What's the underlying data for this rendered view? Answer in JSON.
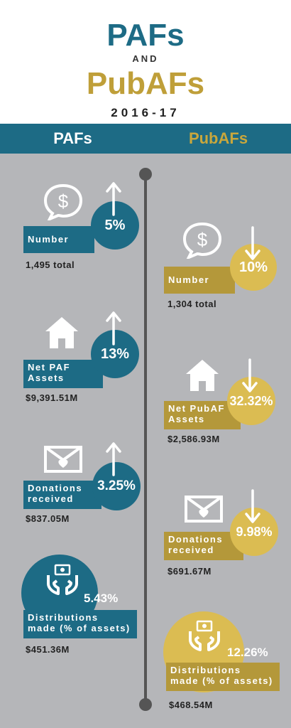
{
  "header": {
    "title_pafs": "PAFs",
    "title_and": "AND",
    "title_pubafs": "PubAFs",
    "year": "2016-17"
  },
  "banner": {
    "left": "PAFs",
    "right": "PubAFs"
  },
  "pafs": {
    "number": {
      "label": "Number",
      "percent": "5%",
      "total": "1,495 total",
      "trend": "up"
    },
    "assets": {
      "label_line1": "Net PAF",
      "label_line2": "Assets",
      "percent": "13%",
      "total": "$9,391.51M",
      "trend": "up"
    },
    "donations": {
      "label_line1": "Donations",
      "label_line2": "received",
      "percent": "3.25%",
      "total": "$837.05M",
      "trend": "up"
    },
    "distributions": {
      "label_line1": "Distributions",
      "label_line2": "made (% of assets)",
      "percent": "5.43%",
      "total": "$451.36M"
    }
  },
  "pubafs": {
    "number": {
      "label": "Number",
      "percent": "10%",
      "total": "1,304 total",
      "trend": "down"
    },
    "assets": {
      "label_line1": "Net PubAF",
      "label_line2": "Assets",
      "percent": "32.32%",
      "total": "$2,586.93M",
      "trend": "down"
    },
    "donations": {
      "label_line1": "Donations",
      "label_line2": "received",
      "percent": "9.98%",
      "total": "$691.67M",
      "trend": "down"
    },
    "distributions": {
      "label_line1": "Distributions",
      "label_line2": "made (% of assets)",
      "percent": "12.26%",
      "total": "$468.54M"
    }
  },
  "colors": {
    "teal": "#1d6b85",
    "gold": "#bf9f39",
    "background": "#b5b6b9"
  },
  "icons": [
    "dollar-speech-bubble-icon",
    "house-icon",
    "envelope-heart-icon",
    "hands-money-icon",
    "arrow-up-icon",
    "arrow-down-icon"
  ]
}
